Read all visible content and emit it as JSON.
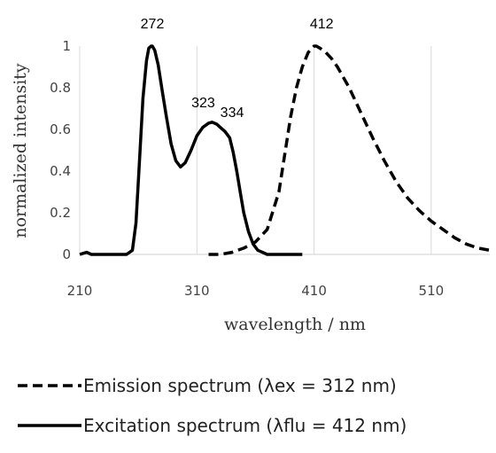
{
  "chart_data": {
    "type": "line",
    "xlabel": "wavelength / nm",
    "ylabel": "normalized intensity",
    "xlim": [
      210,
      560
    ],
    "ylim": [
      0,
      1
    ],
    "xticks": [
      "210",
      "310",
      "410",
      "510"
    ],
    "yticks": [
      "0",
      "0.2",
      "0.4",
      "0.6",
      "0.8",
      "1"
    ],
    "grid": "vertical",
    "legend_position": "bottom",
    "peak_labels": [
      {
        "text": "272",
        "x": 272,
        "y": 1.0
      },
      {
        "text": "323",
        "x": 323,
        "y": 0.63
      },
      {
        "text": "334",
        "x": 334,
        "y": 0.6
      },
      {
        "text": "412",
        "x": 412,
        "y": 1.0
      }
    ],
    "series": [
      {
        "name": "Excitation spectrum (λflu = 412 nm)",
        "style": "solid",
        "color": "#000000",
        "x": [
          210,
          216,
          220,
          230,
          240,
          250,
          255,
          258,
          261,
          264,
          267,
          269,
          271,
          272,
          274,
          277,
          280,
          284,
          288,
          292,
          296,
          300,
          305,
          310,
          315,
          320,
          323,
          327,
          330,
          334,
          338,
          341,
          344,
          347,
          350,
          354,
          358,
          362,
          366,
          370,
          380,
          390,
          400
        ],
        "y": [
          0.0,
          0.01,
          0.0,
          0.0,
          0.0,
          0.0,
          0.02,
          0.15,
          0.45,
          0.75,
          0.93,
          0.99,
          1.0,
          1.0,
          0.98,
          0.91,
          0.8,
          0.66,
          0.53,
          0.45,
          0.42,
          0.44,
          0.5,
          0.57,
          0.61,
          0.63,
          0.635,
          0.625,
          0.61,
          0.59,
          0.56,
          0.49,
          0.4,
          0.3,
          0.2,
          0.11,
          0.05,
          0.02,
          0.01,
          0.0,
          0.0,
          0.0,
          0.0
        ]
      },
      {
        "name": "Emission spectrum (λex = 312 nm)",
        "style": "dashed",
        "color": "#000000",
        "x": [
          320,
          330,
          340,
          350,
          360,
          370,
          380,
          385,
          390,
          395,
          400,
          405,
          410,
          412,
          415,
          420,
          425,
          430,
          440,
          450,
          460,
          470,
          480,
          490,
          500,
          510,
          520,
          530,
          540,
          550,
          560
        ],
        "y": [
          0.0,
          0.0,
          0.01,
          0.03,
          0.06,
          0.12,
          0.3,
          0.48,
          0.66,
          0.8,
          0.9,
          0.97,
          1.0,
          1.0,
          0.99,
          0.97,
          0.94,
          0.9,
          0.8,
          0.68,
          0.56,
          0.45,
          0.35,
          0.27,
          0.21,
          0.16,
          0.12,
          0.08,
          0.05,
          0.03,
          0.02
        ]
      }
    ]
  }
}
